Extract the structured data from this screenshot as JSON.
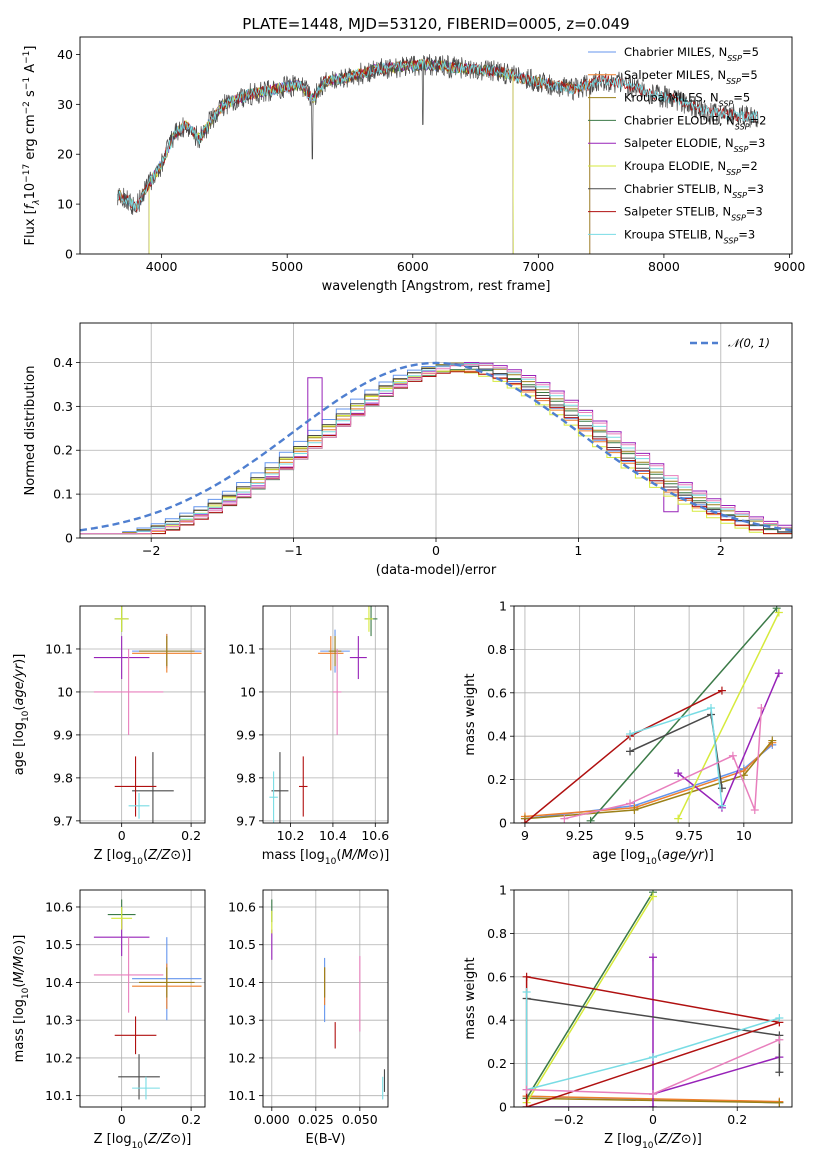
{
  "figure": {
    "title": "PLATE=1448, MJD=53120, FIBERID=0005, z=0.049"
  },
  "colors": [
    "#6495ed",
    "#ee7f2d",
    "#9c8118",
    "#3b7a47",
    "#9722b8",
    "#d6ea3c",
    "#4a4a4a",
    "#b01010",
    "#78dce4",
    "#e87fbd"
  ],
  "chart_data": [
    {
      "id": "spectrum",
      "type": "line",
      "xlabel": "wavelength [Angstrom, rest frame]",
      "ylabel": "Flux [f_λ10^-17 erg cm^-2 s^-1 A^-1]",
      "xlim": [
        3350,
        9020
      ],
      "ylim": [
        0,
        43.5
      ],
      "xticks": [
        4000,
        5000,
        6000,
        7000,
        8000,
        9000
      ],
      "yticks": [
        0,
        10,
        20,
        30,
        40
      ],
      "grid": false,
      "legend": "upper right",
      "continuum": [
        [
          3650,
          12
        ],
        [
          3800,
          9.5
        ],
        [
          3900,
          14
        ],
        [
          4000,
          18
        ],
        [
          4100,
          24
        ],
        [
          4200,
          26
        ],
        [
          4300,
          23
        ],
        [
          4400,
          27
        ],
        [
          4500,
          30
        ],
        [
          4700,
          32
        ],
        [
          4900,
          33
        ],
        [
          5100,
          34
        ],
        [
          5200,
          31
        ],
        [
          5300,
          34.5
        ],
        [
          5500,
          35.5
        ],
        [
          5700,
          37
        ],
        [
          5900,
          37.5
        ],
        [
          6100,
          38
        ],
        [
          6300,
          37.5
        ],
        [
          6500,
          37
        ],
        [
          6700,
          36.5
        ],
        [
          6900,
          35
        ],
        [
          7100,
          34
        ],
        [
          7300,
          33
        ],
        [
          7500,
          35
        ],
        [
          7700,
          34
        ],
        [
          7900,
          32
        ],
        [
          8100,
          31
        ],
        [
          8300,
          29
        ],
        [
          8500,
          28
        ],
        [
          8700,
          27.5
        ]
      ],
      "series": [
        {
          "name": "Chabrier MILES",
          "nssp": "5",
          "color": "#6495ed"
        },
        {
          "name": "Salpeter MILES",
          "nssp": "5",
          "color": "#ee7f2d"
        },
        {
          "name": "Kroupa MILES",
          "nssp": "5",
          "color": "#9c8118"
        },
        {
          "name": "Chabrier ELODIE",
          "nssp": "2",
          "color": "#3b7a47"
        },
        {
          "name": "Salpeter ELODIE",
          "nssp": "3",
          "color": "#9722b8"
        },
        {
          "name": "Kroupa ELODIE",
          "nssp": "2",
          "color": "#d6ea3c"
        },
        {
          "name": "Chabrier STELIB",
          "nssp": "3",
          "color": "#4a4a4a"
        },
        {
          "name": "Salpeter STELIB",
          "nssp": "3",
          "color": "#b01010"
        },
        {
          "name": "Kroupa STELIB",
          "nssp": "3",
          "color": "#78dce4"
        }
      ],
      "range_ends": {
        "MILES": [
          3650,
          7410
        ],
        "ELODIE": [
          3900,
          6800
        ],
        "STELIB": [
          3650,
          8750
        ]
      }
    },
    {
      "id": "residual_hist",
      "type": "step-histogram",
      "xlabel": "(data-model)/error",
      "ylabel": "Normed distribution",
      "xlim": [
        -2.5,
        2.5
      ],
      "ylim": [
        0,
        0.49
      ],
      "xticks": [
        -2,
        -1,
        0,
        1,
        2
      ],
      "yticks": [
        0,
        0.1,
        0.2,
        0.3,
        0.4
      ],
      "grid": true,
      "legend": "upper right",
      "reference": {
        "name": "𝒩(0, 1)",
        "mean": 0,
        "sigma": 1,
        "color": "#4f7fd0"
      },
      "bin_width": 0.1,
      "jitter": [
        0.012,
        -0.015,
        0.018,
        -0.01,
        0.02,
        -0.018,
        0.008,
        -0.022,
        0.015,
        0.01
      ]
    },
    {
      "id": "age_vs_Z",
      "type": "errorbar",
      "xlabel": "Z [log10(Z/Z⊙)]",
      "ylabel": "age [log10(age/yr)]",
      "xlim": [
        -0.12,
        0.24
      ],
      "ylim": [
        9.695,
        10.2
      ],
      "xticks": [
        0.0,
        0.2
      ],
      "yticks": [
        9.7,
        9.8,
        9.9,
        10.0,
        10.1
      ],
      "grid": true,
      "points": [
        {
          "x": 0.13,
          "y": 10.095,
          "xe": 0.1,
          "ye": 0.04,
          "color": "#6495ed"
        },
        {
          "x": 0.13,
          "y": 10.09,
          "xe": 0.1,
          "ye": 0.045,
          "color": "#ee7f2d"
        },
        {
          "x": 0.13,
          "y": 10.095,
          "xe": 0.08,
          "ye": 0.035,
          "color": "#9c8118"
        },
        {
          "x": 0.0,
          "y": 10.17,
          "xe": 0.02,
          "ye": 0.03,
          "color": "#3b7a47"
        },
        {
          "x": 0.0,
          "y": 10.08,
          "xe": 0.08,
          "ye": 0.05,
          "color": "#9722b8"
        },
        {
          "x": 0.0,
          "y": 10.17,
          "xe": 0.02,
          "ye": 0.03,
          "color": "#d6ea3c"
        },
        {
          "x": 0.09,
          "y": 9.77,
          "xe": 0.06,
          "ye": 0.09,
          "color": "#4a4a4a"
        },
        {
          "x": 0.04,
          "y": 9.78,
          "xe": 0.06,
          "ye": 0.07,
          "color": "#b01010"
        },
        {
          "x": 0.05,
          "y": 9.735,
          "xe": 0.03,
          "ye": 0.03,
          "color": "#78dce4"
        },
        {
          "x": 0.02,
          "y": 10.0,
          "xe": 0.1,
          "ye": 0.1,
          "color": "#e87fbd"
        }
      ]
    },
    {
      "id": "age_vs_mass",
      "type": "errorbar",
      "xlabel": "mass [log10(M/M⊙)]",
      "ylabel": "",
      "xlim": [
        10.07,
        10.66
      ],
      "ylim": [
        9.695,
        10.2
      ],
      "xticks": [
        10.2,
        10.4,
        10.6
      ],
      "yticks": [
        9.7,
        9.8,
        9.9,
        10.0,
        10.1
      ],
      "grid": true,
      "points": [
        {
          "x": 10.41,
          "y": 10.095,
          "xe": 0.07,
          "ye": 0.05,
          "color": "#6495ed"
        },
        {
          "x": 10.39,
          "y": 10.09,
          "xe": 0.06,
          "ye": 0.04,
          "color": "#ee7f2d"
        },
        {
          "x": 10.41,
          "y": 10.095,
          "xe": 0.03,
          "ye": 0.035,
          "color": "#9c8118"
        },
        {
          "x": 10.58,
          "y": 10.17,
          "xe": 0.03,
          "ye": 0.04,
          "color": "#3b7a47"
        },
        {
          "x": 10.52,
          "y": 10.08,
          "xe": 0.04,
          "ye": 0.05,
          "color": "#9722b8"
        },
        {
          "x": 10.57,
          "y": 10.17,
          "xe": 0.02,
          "ye": 0.03,
          "color": "#d6ea3c"
        },
        {
          "x": 10.15,
          "y": 9.77,
          "xe": 0.04,
          "ye": 0.09,
          "color": "#4a4a4a"
        },
        {
          "x": 10.26,
          "y": 9.78,
          "xe": 0.02,
          "ye": 0.07,
          "color": "#b01010"
        },
        {
          "x": 10.12,
          "y": 9.755,
          "xe": 0.02,
          "ye": 0.06,
          "color": "#78dce4"
        },
        {
          "x": 10.42,
          "y": 10.0,
          "xe": 0.02,
          "ye": 0.1,
          "color": "#e87fbd"
        }
      ]
    },
    {
      "id": "massweight_vs_age",
      "type": "line",
      "xlabel": "age [log10(age/yr)]",
      "ylabel": "mass weight",
      "xlim": [
        8.95,
        10.22
      ],
      "ylim": [
        0,
        1.0
      ],
      "xticks": [
        9.0,
        9.25,
        9.5,
        9.75,
        10.0
      ],
      "yticks": [
        0.0,
        0.2,
        0.4,
        0.6,
        0.8,
        1.0
      ],
      "grid": true,
      "series": [
        {
          "color": "#6495ed",
          "points": [
            [
              9.0,
              0.02
            ],
            [
              9.5,
              0.08
            ],
            [
              10.0,
              0.25
            ],
            [
              10.13,
              0.36
            ]
          ]
        },
        {
          "color": "#ee7f2d",
          "points": [
            [
              9.0,
              0.03
            ],
            [
              9.5,
              0.07
            ],
            [
              10.0,
              0.24
            ],
            [
              10.13,
              0.37
            ]
          ]
        },
        {
          "color": "#9c8118",
          "points": [
            [
              9.0,
              0.02
            ],
            [
              9.5,
              0.06
            ],
            [
              10.0,
              0.22
            ],
            [
              10.13,
              0.38
            ]
          ]
        },
        {
          "color": "#3b7a47",
          "points": [
            [
              9.3,
              0.01
            ],
            [
              10.15,
              0.99
            ]
          ]
        },
        {
          "color": "#9722b8",
          "points": [
            [
              9.7,
              0.23
            ],
            [
              9.9,
              0.07
            ],
            [
              10.16,
              0.69
            ]
          ]
        },
        {
          "color": "#d6ea3c",
          "points": [
            [
              9.7,
              0.02
            ],
            [
              10.16,
              0.97
            ]
          ]
        },
        {
          "color": "#4a4a4a",
          "points": [
            [
              9.48,
              0.33
            ],
            [
              9.85,
              0.5
            ],
            [
              9.9,
              0.16
            ]
          ]
        },
        {
          "color": "#b01010",
          "points": [
            [
              9.0,
              0.0
            ],
            [
              9.48,
              0.4
            ],
            [
              9.9,
              0.61
            ]
          ]
        },
        {
          "color": "#78dce4",
          "points": [
            [
              9.48,
              0.41
            ],
            [
              9.85,
              0.53
            ],
            [
              9.9,
              0.08
            ]
          ]
        },
        {
          "color": "#e87fbd",
          "points": [
            [
              9.18,
              0.02
            ],
            [
              9.48,
              0.09
            ],
            [
              9.95,
              0.31
            ],
            [
              10.05,
              0.06
            ],
            [
              10.08,
              0.53
            ]
          ]
        }
      ]
    },
    {
      "id": "mass_vs_Z",
      "type": "errorbar",
      "xlabel": "Z [log10(Z/Z⊙)]",
      "ylabel": "mass [log10(M/M⊙)]",
      "xlim": [
        -0.12,
        0.24
      ],
      "ylim": [
        10.07,
        10.645
      ],
      "xticks": [
        0.0,
        0.2
      ],
      "yticks": [
        10.1,
        10.2,
        10.3,
        10.4,
        10.5,
        10.6
      ],
      "grid": true,
      "points": [
        {
          "x": 0.13,
          "y": 10.41,
          "xe": 0.1,
          "ye": 0.11,
          "color": "#6495ed"
        },
        {
          "x": 0.13,
          "y": 10.39,
          "xe": 0.1,
          "ye": 0.06,
          "color": "#ee7f2d"
        },
        {
          "x": 0.13,
          "y": 10.4,
          "xe": 0.08,
          "ye": 0.04,
          "color": "#9c8118"
        },
        {
          "x": 0.0,
          "y": 10.58,
          "xe": 0.04,
          "ye": 0.04,
          "color": "#3b7a47"
        },
        {
          "x": 0.0,
          "y": 10.52,
          "xe": 0.08,
          "ye": 0.05,
          "color": "#9722b8"
        },
        {
          "x": 0.0,
          "y": 10.57,
          "xe": 0.03,
          "ye": 0.03,
          "color": "#d6ea3c"
        },
        {
          "x": 0.05,
          "y": 10.15,
          "xe": 0.06,
          "ye": 0.06,
          "color": "#4a4a4a"
        },
        {
          "x": 0.04,
          "y": 10.26,
          "xe": 0.06,
          "ye": 0.05,
          "color": "#b01010"
        },
        {
          "x": 0.07,
          "y": 10.12,
          "xe": 0.04,
          "ye": 0.03,
          "color": "#78dce4"
        },
        {
          "x": 0.02,
          "y": 10.42,
          "xe": 0.1,
          "ye": 0.1,
          "color": "#e87fbd"
        }
      ]
    },
    {
      "id": "mass_vs_ebv",
      "type": "errorbar",
      "xlabel": "E(B-V)",
      "ylabel": "",
      "xlim": [
        -0.005,
        0.066
      ],
      "ylim": [
        10.07,
        10.645
      ],
      "xticks": [
        0.0,
        0.025,
        0.05
      ],
      "yticks": [
        10.1,
        10.2,
        10.3,
        10.4,
        10.5,
        10.6
      ],
      "xticklabels": [
        "0.000",
        "0.025",
        "0.050"
      ],
      "grid": true,
      "points": [
        {
          "x": 0.03,
          "y": 10.38,
          "xe": 0,
          "ye": 0.085,
          "color": "#6495ed"
        },
        {
          "x": 0.03,
          "y": 10.39,
          "xe": 0,
          "ye": 0.05,
          "color": "#ee7f2d"
        },
        {
          "x": 0.03,
          "y": 10.4,
          "xe": 0,
          "ye": 0.04,
          "color": "#9c8118"
        },
        {
          "x": 0.0,
          "y": 10.59,
          "xe": 0,
          "ye": 0.03,
          "color": "#3b7a47"
        },
        {
          "x": 0.0,
          "y": 10.5,
          "xe": 0,
          "ye": 0.04,
          "color": "#9722b8"
        },
        {
          "x": 0.0,
          "y": 10.56,
          "xe": 0,
          "ye": 0.03,
          "color": "#d6ea3c"
        },
        {
          "x": 0.064,
          "y": 10.14,
          "xe": 0,
          "ye": 0.03,
          "color": "#4a4a4a"
        },
        {
          "x": 0.036,
          "y": 10.26,
          "xe": 0,
          "ye": 0.035,
          "color": "#b01010"
        },
        {
          "x": 0.063,
          "y": 10.12,
          "xe": 0,
          "ye": 0.03,
          "color": "#78dce4"
        },
        {
          "x": 0.05,
          "y": 10.37,
          "xe": 0,
          "ye": 0.1,
          "color": "#e87fbd"
        }
      ]
    },
    {
      "id": "massweight_vs_Z",
      "type": "line",
      "xlabel": "Z [log10(Z/Z⊙)]",
      "ylabel": "mass weight",
      "xlim": [
        -0.33,
        0.33
      ],
      "ylim": [
        0,
        1.0
      ],
      "xticks": [
        -0.2,
        0.0,
        0.2
      ],
      "yticks": [
        0.0,
        0.2,
        0.4,
        0.6,
        0.8,
        1.0
      ],
      "grid": true,
      "series": [
        {
          "color": "#6495ed",
          "points": [
            [
              -0.3,
              0.05
            ],
            [
              0.3,
              0.02
            ]
          ]
        },
        {
          "color": "#ee7f2d",
          "points": [
            [
              -0.3,
              0.05
            ],
            [
              0.3,
              0.025
            ]
          ]
        },
        {
          "color": "#9c8118",
          "points": [
            [
              -0.3,
              0.04
            ],
            [
              0.3,
              0.02
            ]
          ]
        },
        {
          "color": "#3b7a47",
          "points": [
            [
              -0.3,
              0.04
            ],
            [
              0.0,
              0.99
            ]
          ]
        },
        {
          "color": "#9722b8",
          "points": [
            [
              -0.3,
              0.0
            ],
            [
              0.0,
              0.0
            ],
            [
              0.0,
              0.69
            ],
            [
              0.0,
              0.06
            ],
            [
              0.3,
              0.23
            ]
          ]
        },
        {
          "color": "#d6ea3c",
          "points": [
            [
              -0.3,
              0.02
            ],
            [
              0.0,
              0.97
            ]
          ]
        },
        {
          "color": "#4a4a4a",
          "points": [
            [
              -0.3,
              0.5
            ],
            [
              0.3,
              0.33
            ],
            [
              0.3,
              0.16
            ]
          ]
        },
        {
          "color": "#b01010",
          "points": [
            [
              -0.3,
              0.0
            ],
            [
              0.3,
              0.39
            ],
            [
              -0.3,
              0.6
            ],
            [
              -0.3,
              0.0
            ]
          ]
        },
        {
          "color": "#78dce4",
          "points": [
            [
              -0.3,
              0.53
            ],
            [
              -0.3,
              0.08
            ],
            [
              0.0,
              0.23
            ],
            [
              0.3,
              0.41
            ]
          ]
        },
        {
          "color": "#e87fbd",
          "points": [
            [
              -0.3,
              0.08
            ],
            [
              0.0,
              0.06
            ],
            [
              0.3,
              0.31
            ]
          ]
        }
      ]
    }
  ]
}
